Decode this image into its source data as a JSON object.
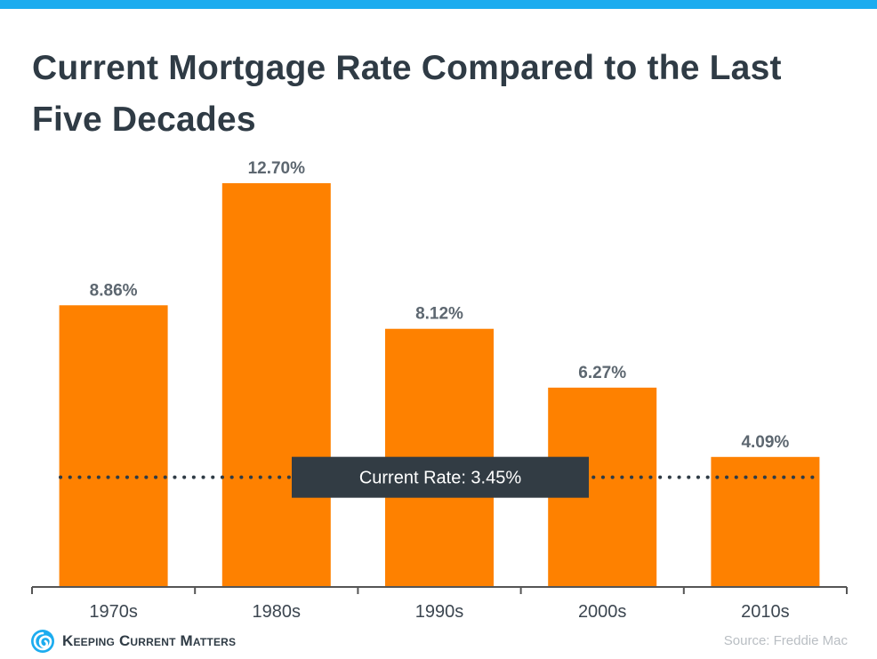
{
  "title": "Current Mortgage Rate Compared to the Last Five Decades",
  "colors": {
    "bar": "#fe8100",
    "accent_bar": "#1cacef",
    "title": "#2f3b45",
    "ref_box": "#323c44",
    "ref_dots": "#2f3b45",
    "axis": "#555555"
  },
  "chart_data": {
    "type": "bar",
    "categories": [
      "1970s",
      "1980s",
      "1990s",
      "2000s",
      "2010s"
    ],
    "values": [
      8.86,
      12.7,
      8.12,
      6.27,
      4.09
    ],
    "value_labels": [
      "8.86%",
      "12.70%",
      "8.12%",
      "6.27%",
      "4.09%"
    ],
    "ylim": [
      0,
      12.7
    ],
    "grid": false,
    "reference_line": {
      "value": 3.45,
      "label": "Current Rate: 3.45%",
      "style": "dotted"
    }
  },
  "footer": {
    "logo_text": "Keeping Current Matters",
    "logo_icon": "spiral-logo-icon",
    "source": "Source: Freddie Mac"
  }
}
